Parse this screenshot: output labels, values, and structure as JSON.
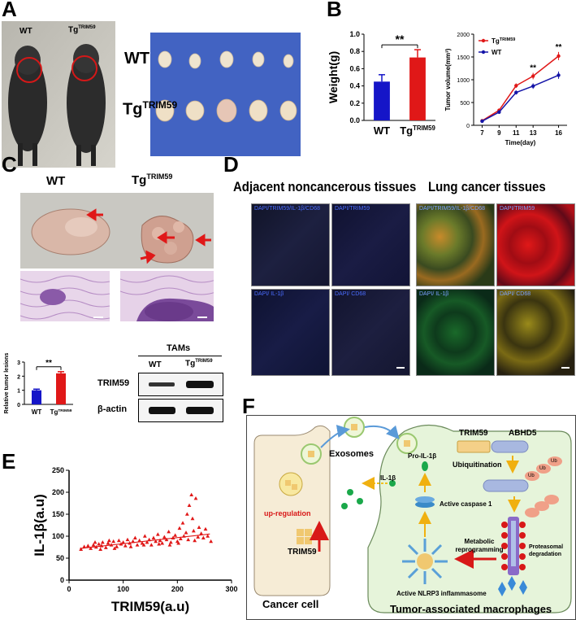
{
  "panels": {
    "A": {
      "label": "A",
      "mouse_wt": "WT",
      "mouse_tg": "Tg",
      "mouse_tg_sup": "TRIM59",
      "row_wt": "WT",
      "row_tg": "Tg",
      "row_tg_sup": "TRIM59"
    },
    "B": {
      "label": "B"
    },
    "C": {
      "label": "C",
      "lung_wt": "WT",
      "lung_tg": "Tg",
      "lung_tg_sup": "TRIM59",
      "blot_header": "TAMs",
      "blot_col_wt": "WT",
      "blot_col_tg": "Tg",
      "blot_col_tg_sup": "TRIM59",
      "blot_row1": "TRIM59",
      "blot_row2": "β-actin"
    },
    "D": {
      "label": "D",
      "title_left": "Adjacent noncancerous tissues",
      "title_right": "Lung cancer tissues",
      "tile_merge": "DAPI/TRIM59/IL-1β/CD68",
      "tile_trim": "DAPI/TRIM59",
      "tile_il": "DAPI/ IL-1β",
      "tile_cd": "DAPI/ CD68"
    },
    "E": {
      "label": "E"
    },
    "F": {
      "label": "F",
      "exosomes": "Exosomes",
      "il1b": "IL-1β",
      "pro_il1b": "Pro-IL-1β",
      "active_caspase": "Active caspase 1",
      "trim59": "TRIM59",
      "abhd5": "ABHD5",
      "ubiquitination": "Ubiquitination",
      "ub": "Ub",
      "metabolic": "Metabolic reprogramming",
      "proteasomal": "Proteasomal degradation",
      "nlrp3": "Active NLRP3 inflammasome",
      "upreg": "up-regulation",
      "cancer_trim": "TRIM59",
      "cancer_cell": "Cancer cell",
      "tam": "Tumor-associated macrophages"
    }
  },
  "chart_data": [
    {
      "id": "B-left",
      "type": "bar",
      "categories": [
        "WT",
        "Tg"
      ],
      "category_sups": [
        "",
        "TRIM59"
      ],
      "values": [
        0.45,
        0.73
      ],
      "errors": [
        0.08,
        0.09
      ],
      "colors": [
        "#1515c8",
        "#e01818"
      ],
      "ylabel": "Weight(g)",
      "ylim": [
        0,
        1.0
      ],
      "yticks": [
        "0.0",
        "0.2",
        "0.4",
        "0.6",
        "0.8",
        "1.0"
      ],
      "significance": "**"
    },
    {
      "id": "B-right",
      "type": "line",
      "x": [
        7,
        9,
        11,
        13,
        16
      ],
      "xticks": [
        "7",
        "9",
        "11",
        "13",
        "16"
      ],
      "series": [
        {
          "name": "Tg",
          "name_sup": "TRIM59",
          "color": "#e01818",
          "values": [
            100,
            330,
            870,
            1080,
            1520
          ],
          "errors": [
            15,
            30,
            50,
            70,
            90
          ]
        },
        {
          "name": "WT",
          "name_sup": "",
          "color": "#1515a8",
          "values": [
            90,
            290,
            720,
            860,
            1100
          ],
          "errors": [
            15,
            25,
            45,
            60,
            80
          ]
        }
      ],
      "significance": [
        "",
        "",
        "",
        "**",
        "**"
      ],
      "xlabel": "Time(day)",
      "ylabel": "Tumor volume(mm³)",
      "ylim": [
        0,
        2000
      ],
      "yticks": [
        "0",
        "500",
        "1000",
        "1500",
        "2000"
      ],
      "legend": "top-left"
    },
    {
      "id": "C-bar",
      "type": "bar",
      "categories": [
        "WT",
        "Tg"
      ],
      "category_sups": [
        "",
        "TRIM59"
      ],
      "values": [
        1.0,
        2.2
      ],
      "errors": [
        0.08,
        0.12
      ],
      "colors": [
        "#1515c8",
        "#e01818"
      ],
      "ylabel": "Relative tumor lesions",
      "ylim": [
        0,
        3
      ],
      "yticks": [
        "0",
        "1",
        "2",
        "3"
      ],
      "significance": "**"
    },
    {
      "id": "E-scatter",
      "type": "scatter",
      "color": "#e01818",
      "xlabel": "TRIM59(a.u)",
      "ylabel": "IL-1β(a.u)",
      "xlim": [
        0,
        300
      ],
      "ylim": [
        0,
        250
      ],
      "xticks": [
        "0",
        "100",
        "200",
        "300"
      ],
      "yticks": [
        "0",
        "50",
        "100",
        "150",
        "200",
        "250"
      ],
      "trend": [
        [
          20,
          72
        ],
        [
          260,
          105
        ]
      ],
      "points": [
        [
          22,
          70
        ],
        [
          28,
          76
        ],
        [
          35,
          78
        ],
        [
          40,
          72
        ],
        [
          45,
          80
        ],
        [
          50,
          75
        ],
        [
          55,
          82
        ],
        [
          60,
          78
        ],
        [
          62,
          86
        ],
        [
          68,
          74
        ],
        [
          72,
          84
        ],
        [
          78,
          80
        ],
        [
          82,
          88
        ],
        [
          88,
          76
        ],
        [
          92,
          90
        ],
        [
          96,
          82
        ],
        [
          100,
          86
        ],
        [
          104,
          78
        ],
        [
          108,
          92
        ],
        [
          112,
          84
        ],
        [
          118,
          88
        ],
        [
          122,
          96
        ],
        [
          126,
          80
        ],
        [
          130,
          90
        ],
        [
          135,
          84
        ],
        [
          140,
          100
        ],
        [
          144,
          86
        ],
        [
          148,
          92
        ],
        [
          152,
          80
        ],
        [
          156,
          96
        ],
        [
          160,
          88
        ],
        [
          164,
          104
        ],
        [
          168,
          90
        ],
        [
          172,
          84
        ],
        [
          176,
          98
        ],
        [
          180,
          92
        ],
        [
          184,
          110
        ],
        [
          188,
          86
        ],
        [
          192,
          96
        ],
        [
          196,
          102
        ],
        [
          200,
          88
        ],
        [
          204,
          118
        ],
        [
          206,
          94
        ],
        [
          210,
          130
        ],
        [
          212,
          100
        ],
        [
          216,
          108
        ],
        [
          218,
          150
        ],
        [
          220,
          92
        ],
        [
          222,
          170
        ],
        [
          226,
          194
        ],
        [
          228,
          140
        ],
        [
          230,
          112
        ],
        [
          234,
          186
        ],
        [
          238,
          98
        ],
        [
          240,
          120
        ],
        [
          244,
          106
        ],
        [
          248,
          96
        ],
        [
          252,
          116
        ],
        [
          256,
          100
        ],
        [
          262,
          88
        ],
        [
          58,
          70
        ],
        [
          84,
          72
        ],
        [
          114,
          76
        ],
        [
          138,
          80
        ],
        [
          166,
          82
        ],
        [
          186,
          80
        ],
        [
          202,
          84
        ],
        [
          232,
          90
        ],
        [
          48,
          86
        ],
        [
          74,
          90
        ]
      ]
    }
  ]
}
